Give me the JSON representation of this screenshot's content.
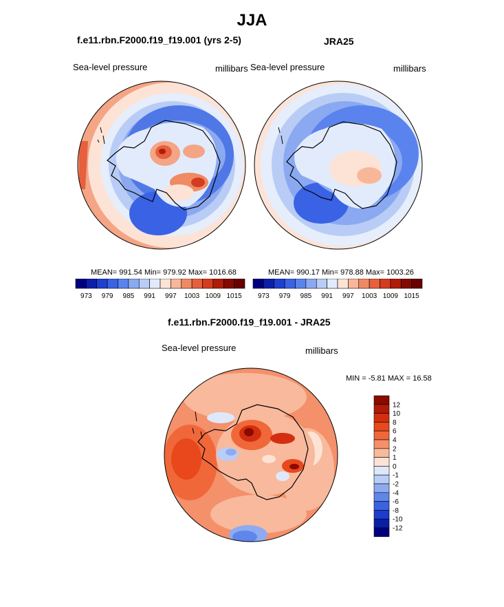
{
  "page": {
    "title": "JJA",
    "left_title": "f.e11.rbn.F2000.f19_f19.001 (yrs 2-5)",
    "right_title": "JRA25",
    "diff_title": "f.e11.rbn.F2000.f19_f19.001 - JRA25"
  },
  "chart_data": [
    {
      "type": "heatmap",
      "projection": "south-polar-stereographic",
      "title": "f.e11.rbn.F2000.f19_f19.001 (yrs 2-5)",
      "left_label": "Sea-level pressure",
      "right_label": "millibars",
      "stats": {
        "mean": "991.54",
        "min": "979.92",
        "max": "1016.68"
      },
      "stats_text": "MEAN= 991.54   Min= 979.92   Max= 1016.68",
      "colorbar": {
        "orientation": "horizontal",
        "levels": [
          973,
          976,
          979,
          982,
          985,
          988,
          991,
          994,
          997,
          1000,
          1003,
          1006,
          1009,
          1012,
          1015
        ],
        "tick_labels": [
          "973",
          "979",
          "985",
          "991",
          "997",
          "1003",
          "1009",
          "1015"
        ],
        "colors": [
          "#00007f",
          "#0d1fa8",
          "#1f3fcf",
          "#3a62e5",
          "#5a83ee",
          "#8ba9f1",
          "#b8ccf5",
          "#e2ebfb",
          "#fde3d6",
          "#f9b79a",
          "#f08a63",
          "#e6603d",
          "#d43c1f",
          "#ae1c0a",
          "#850900",
          "#680000"
        ]
      }
    },
    {
      "type": "heatmap",
      "projection": "south-polar-stereographic",
      "title": "JRA25",
      "left_label": "Sea-level pressure",
      "right_label": "millibars",
      "stats": {
        "mean": "990.17",
        "min": "978.88",
        "max": "1003.26"
      },
      "stats_text": "MEAN= 990.17   Min= 978.88   Max= 1003.26",
      "colorbar": {
        "orientation": "horizontal",
        "levels": [
          973,
          976,
          979,
          982,
          985,
          988,
          991,
          994,
          997,
          1000,
          1003,
          1006,
          1009,
          1012,
          1015
        ],
        "tick_labels": [
          "973",
          "979",
          "985",
          "991",
          "997",
          "1003",
          "1009",
          "1015"
        ],
        "colors": [
          "#00007f",
          "#0d1fa8",
          "#1f3fcf",
          "#3a62e5",
          "#5a83ee",
          "#8ba9f1",
          "#b8ccf5",
          "#e2ebfb",
          "#fde3d6",
          "#f9b79a",
          "#f08a63",
          "#e6603d",
          "#d43c1f",
          "#ae1c0a",
          "#850900",
          "#680000"
        ]
      }
    },
    {
      "type": "heatmap",
      "projection": "south-polar-stereographic",
      "title": "f.e11.rbn.F2000.f19_f19.001 - JRA25",
      "left_label": "Sea-level pressure",
      "right_label": "millibars",
      "stats": {
        "min": "-5.81",
        "max": "16.58"
      },
      "stats_text": "MIN =  -5.81  MAX =  16.58",
      "colorbar": {
        "orientation": "vertical",
        "levels": [
          12,
          10,
          8,
          6,
          4,
          2,
          1,
          0,
          -1,
          -2,
          -4,
          -6,
          -8,
          -10,
          -12
        ],
        "tick_labels": [
          "12",
          "10",
          "8",
          "6",
          "4",
          "2",
          "1",
          "0",
          "-1",
          "-2",
          "-4",
          "-6",
          "-8",
          "-10",
          "-12"
        ],
        "colors": [
          "#8a0a00",
          "#b11a06",
          "#d42e10",
          "#e8481c",
          "#f0683a",
          "#f4906a",
          "#f8b99c",
          "#fde3d6",
          "#dfe8fb",
          "#b9cdf6",
          "#8eaaf1",
          "#5f86ea",
          "#3a62e1",
          "#1d3ccd",
          "#0a1ea8",
          "#00007f"
        ]
      }
    }
  ]
}
